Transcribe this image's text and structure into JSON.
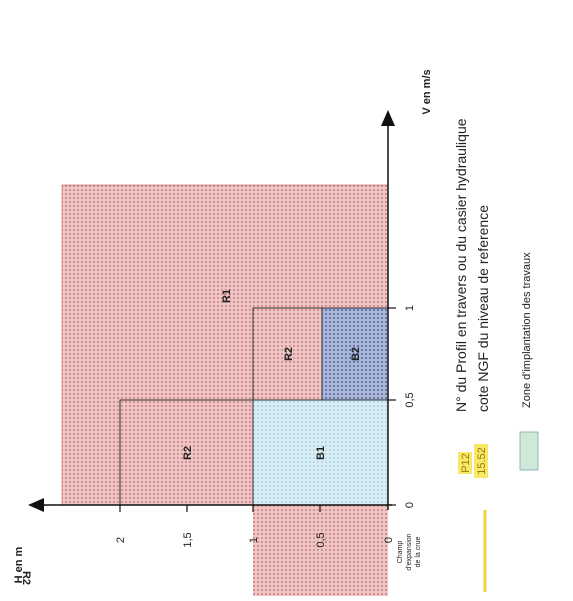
{
  "axes": {
    "h": {
      "label": "H en m",
      "ticks": [
        "0",
        "0,5",
        "1",
        "1,5",
        "2"
      ]
    },
    "v": {
      "label": "V en m/s",
      "ticks": [
        "0",
        "0,5",
        "1"
      ]
    }
  },
  "regions": {
    "r1": "R1",
    "r2_left": "R2",
    "r2_right": "R2",
    "b1": "B1",
    "b2": "B2",
    "r2_bottom": "R2"
  },
  "flood_field": {
    "line1": "Champ",
    "line2": "d'expansion",
    "line3": "de la crue"
  },
  "legend": {
    "profile": "N° du Profil en travers ou du casier hydraulique",
    "level": "cote NGF du niveau de reference",
    "sample_top": "P12",
    "sample_bottom": "15.52",
    "works": "Zone d'implantation des travaux"
  }
}
